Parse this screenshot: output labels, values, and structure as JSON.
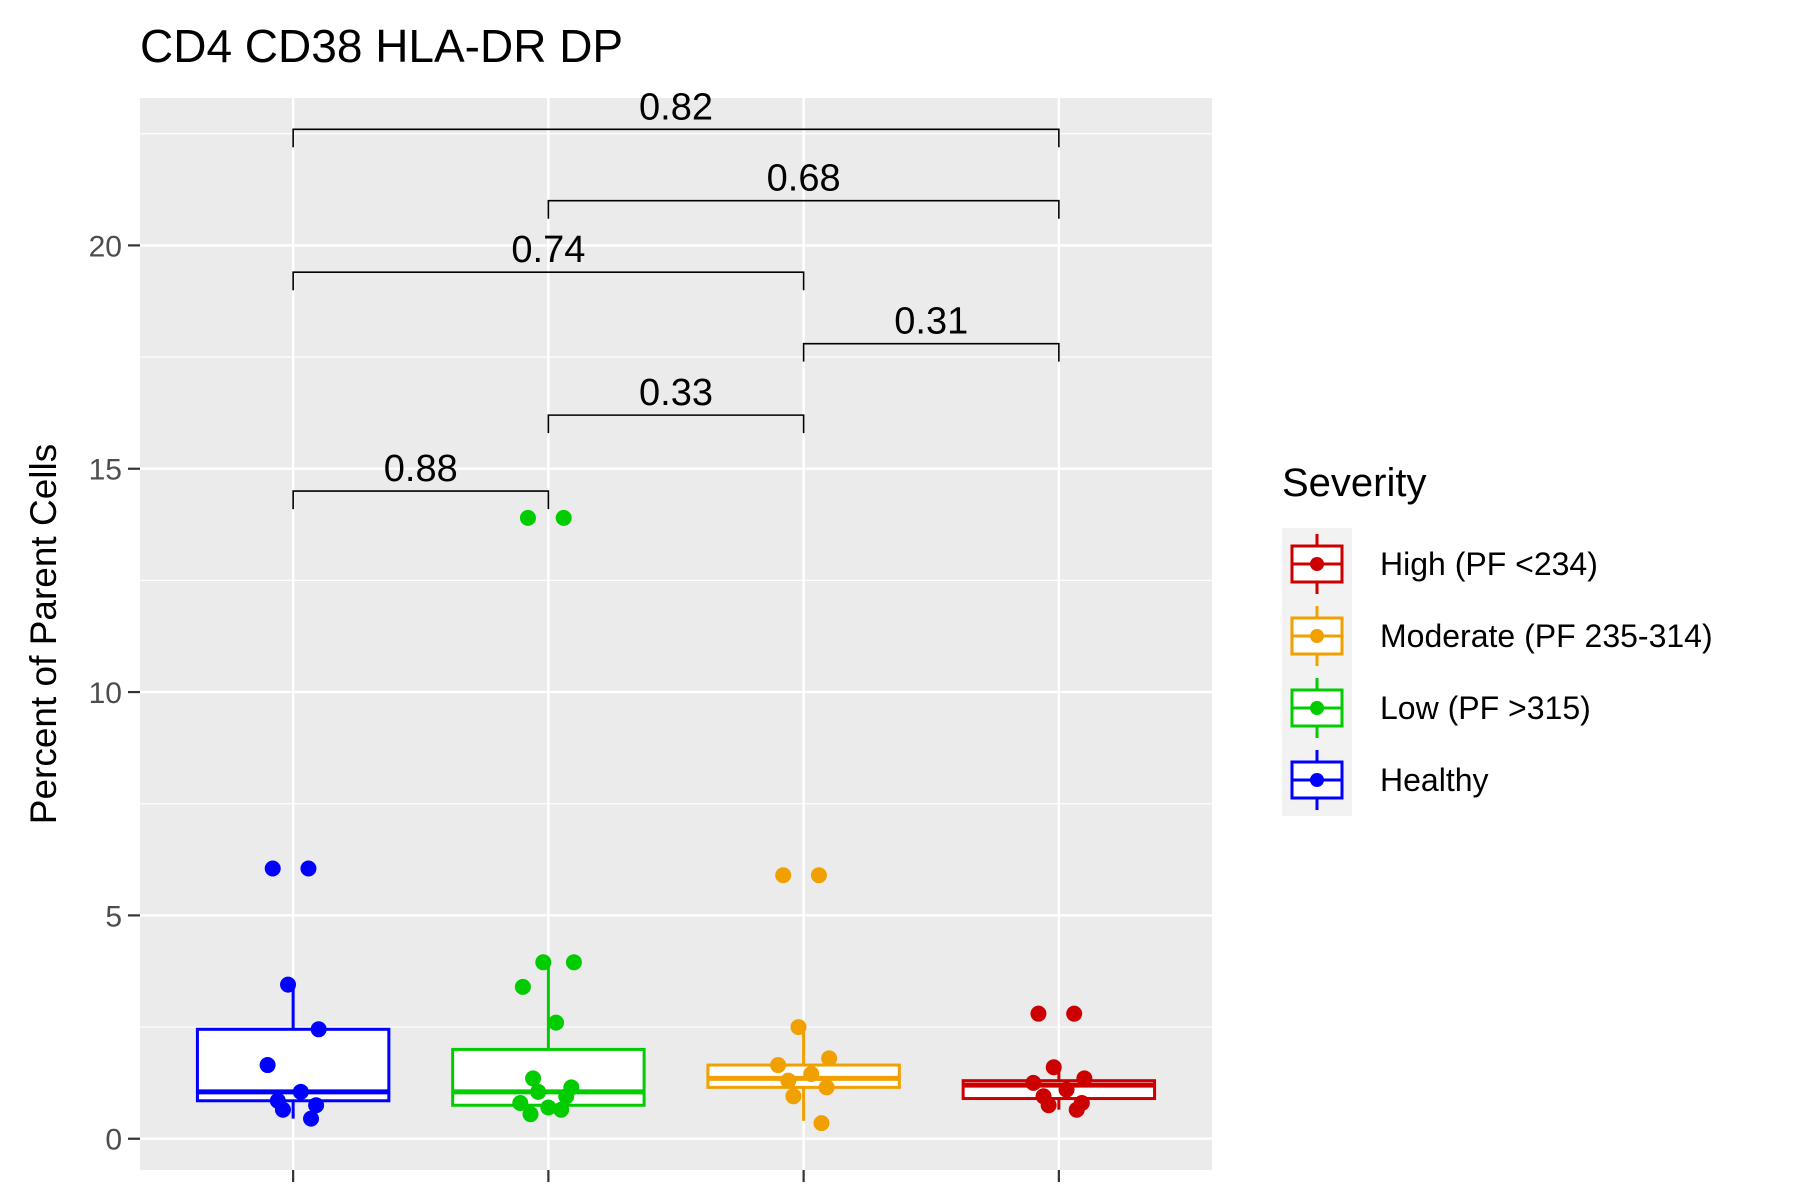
{
  "chart_data": {
    "type": "box",
    "title": "CD4 CD38 HLA-DR DP",
    "xlabel": "",
    "ylabel": "Percent of Parent Cells",
    "ylim": [
      -0.7,
      23.3
    ],
    "yticks": [
      0,
      5,
      10,
      15,
      20
    ],
    "grid": true,
    "legend": {
      "title": "Severity",
      "placement": "right",
      "entries": [
        {
          "label": "High (PF <234)",
          "color": "#cc0000"
        },
        {
          "label": "Moderate (PF 235-314)",
          "color": "#f0a000"
        },
        {
          "label": "Low (PF >315)",
          "color": "#00cc00"
        },
        {
          "label": "Healthy",
          "color": "#0000ff"
        }
      ]
    },
    "groups": [
      {
        "name": "Healthy",
        "color": "#0000ff",
        "box": {
          "q1": 0.85,
          "median": 1.05,
          "q3": 2.45,
          "whisker_low": 0.45,
          "whisker_high": 3.45
        },
        "points": [
          6.05,
          6.05,
          3.45,
          2.45,
          1.65,
          1.05,
          0.85,
          0.75,
          0.65,
          0.45
        ]
      },
      {
        "name": "Low (PF >315)",
        "color": "#00cc00",
        "box": {
          "q1": 0.75,
          "median": 1.05,
          "q3": 2.0,
          "whisker_low": 0.55,
          "whisker_high": 3.95
        },
        "points": [
          13.9,
          13.9,
          3.95,
          3.95,
          3.4,
          2.6,
          1.35,
          1.15,
          1.05,
          0.95,
          0.8,
          0.7,
          0.65,
          0.55
        ]
      },
      {
        "name": "Moderate (PF 235-314)",
        "color": "#f0a000",
        "box": {
          "q1": 1.15,
          "median": 1.35,
          "q3": 1.65,
          "whisker_low": 0.4,
          "whisker_high": 2.5
        },
        "points": [
          5.9,
          5.9,
          2.5,
          1.8,
          1.65,
          1.45,
          1.3,
          1.15,
          0.95,
          0.35
        ]
      },
      {
        "name": "High (PF <234)",
        "color": "#cc0000",
        "box": {
          "q1": 0.9,
          "median": 1.2,
          "q3": 1.3,
          "whisker_low": 0.65,
          "whisker_high": 1.6
        },
        "points": [
          2.8,
          2.8,
          1.6,
          1.35,
          1.25,
          1.1,
          0.95,
          0.8,
          0.75,
          0.65
        ]
      }
    ],
    "comparisons": [
      {
        "from": 0,
        "to": 1,
        "y": 14.5,
        "label": "0.88"
      },
      {
        "from": 1,
        "to": 2,
        "y": 16.2,
        "label": "0.33"
      },
      {
        "from": 2,
        "to": 3,
        "y": 17.8,
        "label": "0.31"
      },
      {
        "from": 0,
        "to": 2,
        "y": 19.4,
        "label": "0.74"
      },
      {
        "from": 1,
        "to": 3,
        "y": 21.0,
        "label": "0.68"
      },
      {
        "from": 0,
        "to": 3,
        "y": 22.6,
        "label": "0.82"
      }
    ]
  }
}
